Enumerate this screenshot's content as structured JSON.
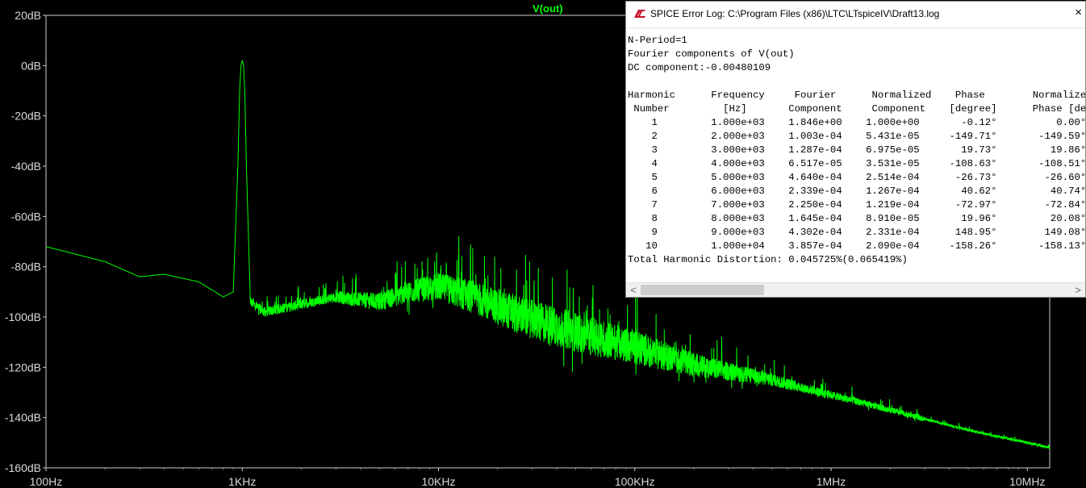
{
  "plot": {
    "trace_label": "V(out)",
    "background": "#000000",
    "trace_color": "#00ff00",
    "y_ticks": [
      "20dB",
      "0dB",
      "-20dB",
      "-40dB",
      "-60dB",
      "-80dB",
      "-100dB",
      "-120dB",
      "-140dB",
      "-160dB"
    ],
    "x_ticks": [
      "100Hz",
      "1KHz",
      "10KHz",
      "100KHz",
      "1MHz",
      "10MHz"
    ]
  },
  "chart_data": {
    "type": "line",
    "title": "V(out)",
    "x_scale": "log",
    "xlim_hz": [
      100,
      13000000
    ],
    "ylim_db": [
      -160,
      20
    ],
    "series": [
      {
        "name": "V(out)",
        "x_hz": [
          100,
          200,
          300,
          400,
          600,
          800,
          900,
          950,
          970,
          985,
          1000,
          1015,
          1030,
          1050,
          1100,
          1300,
          2000,
          3000,
          5000,
          7000,
          10000,
          15000,
          20000,
          30000,
          50000,
          100000,
          200000,
          500000,
          1000000,
          2000000,
          5000000,
          10000000,
          13000000
        ],
        "y_db": [
          -72,
          -78,
          -84,
          -83,
          -86,
          -92,
          -90,
          -40,
          -10,
          0,
          2,
          0,
          -10,
          -40,
          -94,
          -98,
          -95,
          -92,
          -94,
          -90,
          -88,
          -92,
          -96,
          -101,
          -106,
          -112,
          -119,
          -125,
          -131,
          -137,
          -145,
          -150,
          -152
        ]
      }
    ]
  },
  "log_window": {
    "title": "SPICE Error Log: C:\\Program Files (x86)\\LTC\\LTspiceIV\\Draft13.log",
    "close_symbol": "×",
    "lines": [
      "N-Period=1",
      "Fourier components of V(out)",
      "DC component:-0.00480109",
      "",
      "Harmonic      Frequency     Fourier      Normalized    Phase        Normalized",
      " Number         [Hz]       Component     Component    [degree]      Phase [deg]",
      "    1         1.000e+03    1.846e+00    1.000e+00       -0.12°          0.00°",
      "    2         2.000e+03    1.003e-04    5.431e-05     -149.71°       -149.59°",
      "    3         3.000e+03    1.287e-04    6.975e-05       19.73°         19.86°",
      "    4         4.000e+03    6.517e-05    3.531e-05     -108.63°       -108.51°",
      "    5         5.000e+03    4.640e-04    2.514e-04      -26.73°        -26.60°",
      "    6         6.000e+03    2.339e-04    1.267e-04       40.62°         40.74°",
      "    7         7.000e+03    2.250e-04    1.219e-04      -72.97°        -72.84°",
      "    8         8.000e+03    1.645e-04    8.910e-05       19.96°         20.08°",
      "    9         9.000e+03    4.302e-04    2.331e-04      148.95°        149.08°",
      "   10         1.000e+04    3.857e-04    2.090e-04     -158.26°       -158.13°",
      "Total Harmonic Distortion: 0.045725%(0.065419%)"
    ],
    "scroll_left": "<",
    "scroll_right": ">"
  }
}
